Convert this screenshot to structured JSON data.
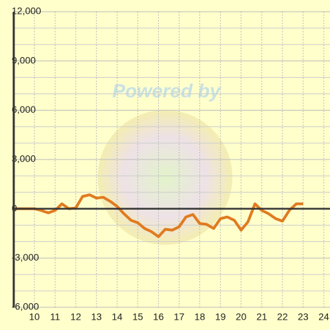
{
  "chart_data": {
    "type": "line",
    "watermark": "Powered by",
    "x": [
      9,
      9.33,
      9.67,
      10,
      10.33,
      10.67,
      11,
      11.33,
      11.67,
      12,
      12.33,
      12.67,
      13,
      13.33,
      13.67,
      14,
      14.33,
      14.67,
      15,
      15.33,
      15.67,
      16,
      16.33,
      16.67,
      17,
      17.33,
      17.67,
      18,
      18.33,
      18.67,
      19,
      19.33,
      19.67,
      20,
      20.33,
      20.67,
      21,
      21.33,
      21.67,
      22,
      22.33,
      22.67,
      23
    ],
    "series": [
      {
        "color": "#e07b20",
        "values": [
          0,
          0,
          0,
          0,
          -100,
          -250,
          -100,
          300,
          0,
          50,
          750,
          850,
          650,
          700,
          450,
          150,
          -300,
          -700,
          -850,
          -1200,
          -1400,
          -1700,
          -1250,
          -1300,
          -1100,
          -500,
          -350,
          -900,
          -950,
          -1200,
          -600,
          -500,
          -700,
          -1300,
          -800,
          300,
          -100,
          -300,
          -600,
          -750,
          -100,
          300,
          300
        ]
      }
    ],
    "xlim": [
      9,
      24.3
    ],
    "xticks": [
      10,
      11,
      12,
      13,
      14,
      15,
      16,
      17,
      18,
      19,
      20,
      21,
      22,
      23,
      24
    ],
    "ylim": [
      -6000,
      12000
    ],
    "yticks": [
      {
        "value": -6000,
        "label": "-6,000"
      },
      {
        "value": -3000,
        "label": "-3,000"
      },
      0,
      {
        "value": 3000,
        "label": "3,000"
      },
      {
        "value": 6000,
        "label": "6,000"
      },
      {
        "value": 9000,
        "label": "9,000"
      },
      {
        "value": 12000,
        "label": "12,000"
      }
    ],
    "y_minor_ticks": [
      -5000,
      -4000,
      -2000,
      -1000,
      1000,
      2000,
      4000,
      5000,
      7000,
      8000,
      10000,
      11000
    ],
    "grid": true
  }
}
